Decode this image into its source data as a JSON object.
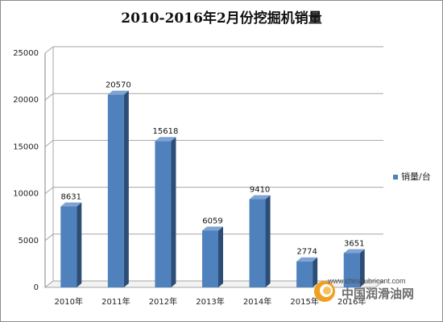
{
  "chart_data": {
    "type": "bar",
    "title": "2010-2016年2月份挖掘机销量",
    "categories": [
      "2010年",
      "2011年",
      "2012年",
      "2013年",
      "2014年",
      "2015年",
      "2016年"
    ],
    "series": [
      {
        "name": "销量/台",
        "values": [
          8631,
          20570,
          15618,
          6059,
          9410,
          2774,
          3651
        ]
      }
    ],
    "ylim": [
      0,
      25000
    ],
    "yticks": [
      0,
      5000,
      10000,
      15000,
      20000,
      25000
    ],
    "grid": true,
    "legend": "right",
    "colors": {
      "bar_front": "#4f81bd",
      "bar_side": "#2c4d75",
      "bar_top": "#7ea3d4"
    }
  },
  "watermark": {
    "url": "www.chinalubricant.com",
    "name": "中国润滑油网"
  }
}
